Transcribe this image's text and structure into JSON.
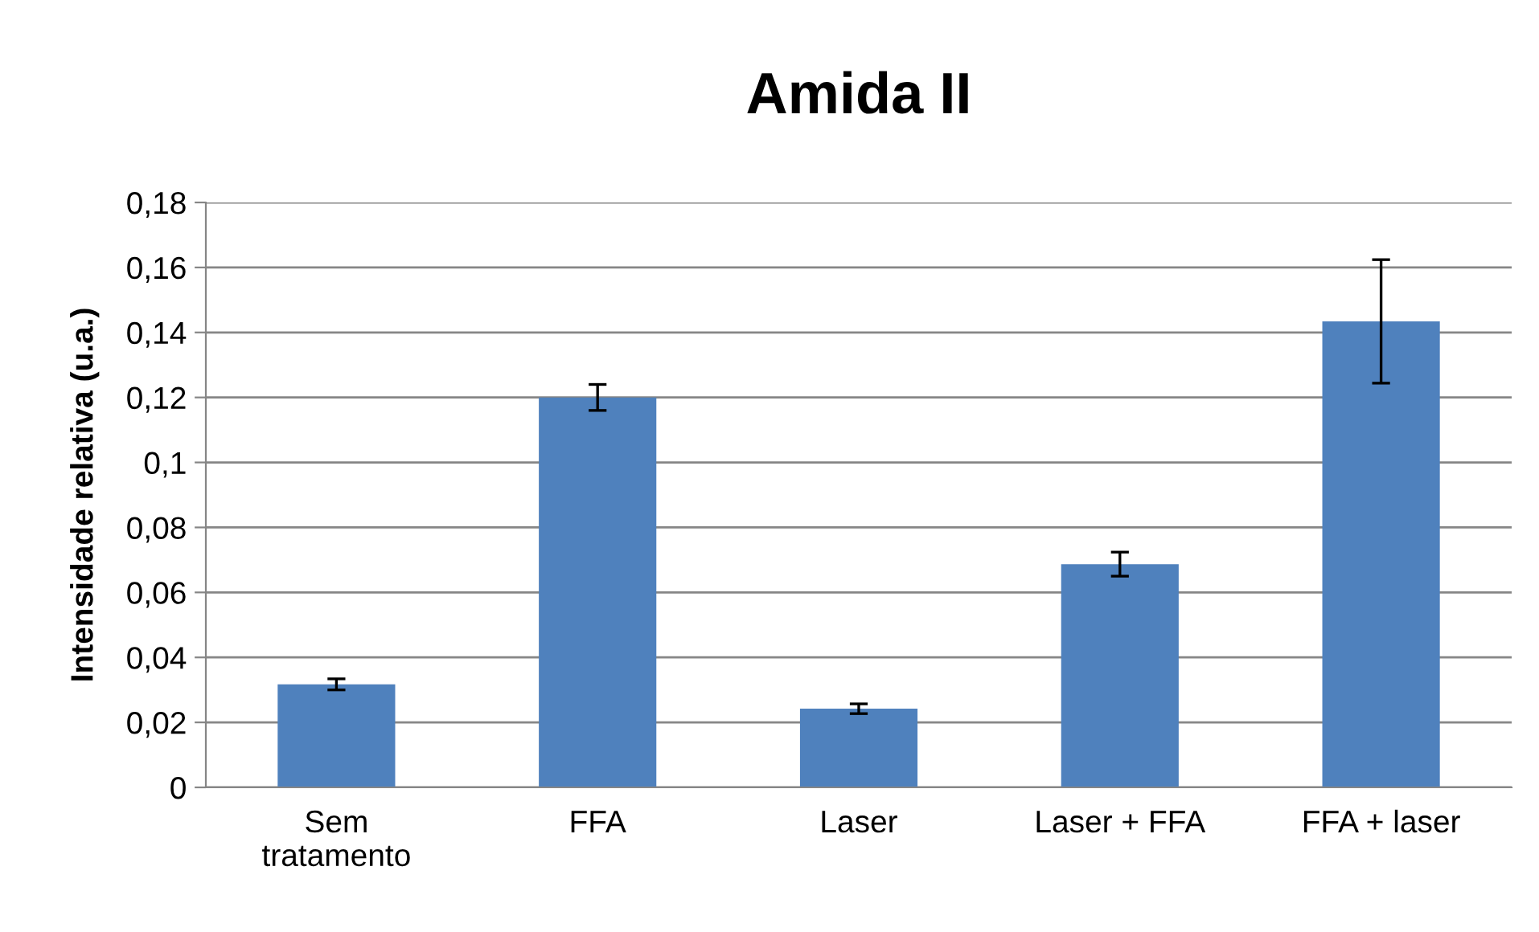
{
  "chart_data": {
    "type": "bar",
    "title": "Amida II",
    "ylabel": "Intensidade relativa (u.a.)",
    "categories": [
      "Sem\ntratamento",
      "FFA",
      "Laser",
      "Laser + FFA",
      "FFA + laser"
    ],
    "values": [
      0.0317,
      0.12,
      0.0242,
      0.0687,
      0.1434
    ],
    "errors": [
      0.0017,
      0.004,
      0.0015,
      0.0037,
      0.019
    ],
    "color": "#4f81bd",
    "ylim": [
      0,
      0.18
    ],
    "yticks": [
      0,
      {
        "value": 0.02,
        "label": "0,02"
      },
      {
        "value": 0.04,
        "label": "0,04"
      },
      {
        "value": 0.06,
        "label": "0,06"
      },
      {
        "value": 0.08,
        "label": "0,08"
      },
      {
        "value": 0.1,
        "label": "0,1"
      },
      {
        "value": 0.12,
        "label": "0,12"
      },
      {
        "value": 0.14,
        "label": "0,14"
      },
      {
        "value": 0.16,
        "label": "0,16"
      },
      {
        "value": 0.18,
        "label": "0,18"
      }
    ],
    "grid": "y",
    "legend": false
  }
}
